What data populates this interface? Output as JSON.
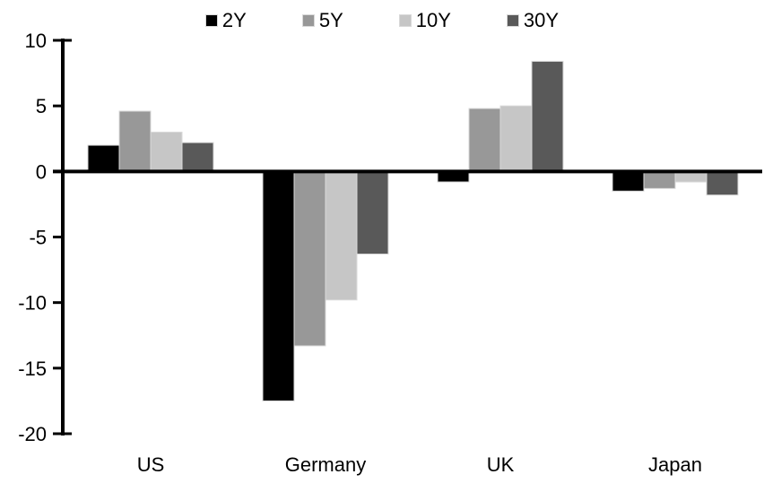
{
  "chart_data": {
    "type": "bar",
    "title": "",
    "categories": [
      "US",
      "Germany",
      "UK",
      "Japan"
    ],
    "series": [
      {
        "name": "2Y",
        "color": "#000000",
        "values": [
          2.0,
          -17.5,
          -0.8,
          -1.5
        ]
      },
      {
        "name": "5Y",
        "color": "#989898",
        "values": [
          4.6,
          -13.3,
          4.8,
          -1.3
        ]
      },
      {
        "name": "10Y",
        "color": "#c6c6c6",
        "values": [
          3.0,
          -9.8,
          5.0,
          -0.8
        ]
      },
      {
        "name": "30Y",
        "color": "#595959",
        "values": [
          2.2,
          -6.3,
          8.4,
          -1.8
        ]
      }
    ],
    "xlabel": "",
    "ylabel": "",
    "y_axis": {
      "min": -20,
      "max": 10,
      "tick_step": 5,
      "tick_labels": [
        "10",
        "5",
        "0",
        "-5",
        "-10",
        "-15",
        "-20"
      ]
    },
    "legend_position": "top",
    "grid": false,
    "colors": {
      "axis": "#000000",
      "text": "#000000",
      "bar_border": "#d9d9d9",
      "background": "#ffffff"
    }
  }
}
